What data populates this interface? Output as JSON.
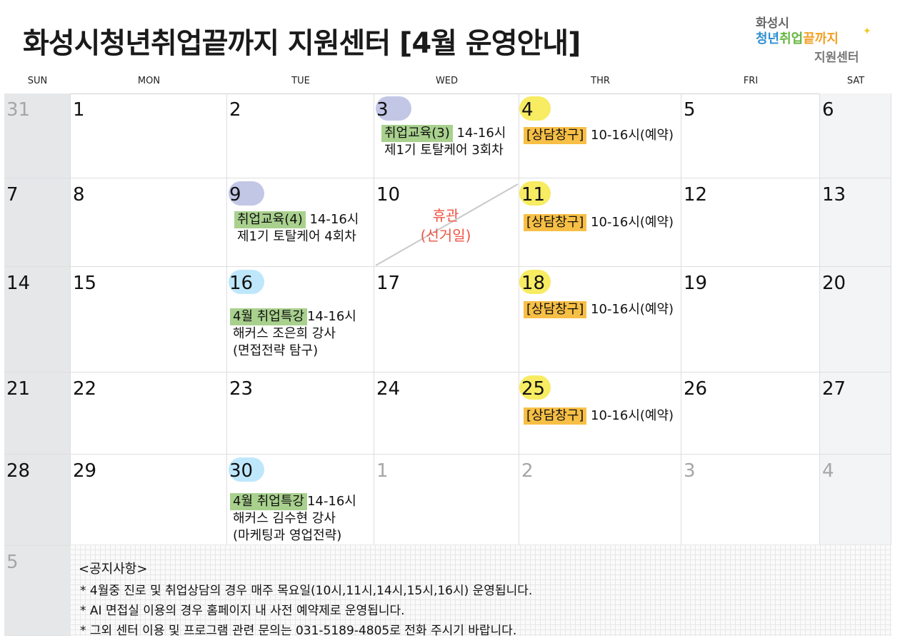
{
  "header": {
    "title": "화성시청년취업끝까지 지원센터 [4월 운영안내]",
    "logo": {
      "line1": "화성시",
      "line2": [
        "청년",
        "취업",
        "끝까지"
      ],
      "line3": "지원센터"
    }
  },
  "weekdays": [
    "SUN",
    "MON",
    "TUE",
    "WED",
    "THR",
    "FRI",
    "SAT"
  ],
  "days": {
    "r0": [
      "31",
      "1",
      "2",
      "3",
      "4",
      "5",
      "6"
    ],
    "r1": [
      "7",
      "8",
      "9",
      "10",
      "11",
      "12",
      "13"
    ],
    "r2": [
      "14",
      "15",
      "16",
      "17",
      "18",
      "19",
      "20"
    ],
    "r3": [
      "21",
      "22",
      "23",
      "24",
      "25",
      "26",
      "27"
    ],
    "r4": [
      "28",
      "29",
      "30",
      "1",
      "2",
      "3",
      "4"
    ],
    "r5": [
      "5"
    ]
  },
  "events": {
    "edu3": {
      "tag": "취업교육(3)",
      "time": "14-16시",
      "line2": "제1기 토탈케어 3회차"
    },
    "edu4": {
      "tag": "취업교육(4)",
      "time": "14-16시",
      "line2": "제1기 토탈케어 4회차"
    },
    "consult": {
      "tag": "[상담창구]",
      "time": "10-16시(예약)"
    },
    "special16": {
      "tag": "4월 취업특강",
      "time": "14-16시",
      "line2": "해커스 조은희 강사",
      "line3": "(면접전략 탐구)"
    },
    "special30": {
      "tag": "4월 취업특강",
      "time": "14-16시",
      "line2": "해커스 김수현 강사",
      "line3": "(마케팅과 영업전략)"
    },
    "closed": {
      "line1": "휴관",
      "line2": "(선거일)"
    }
  },
  "notice": {
    "title": "<공지사항>",
    "lines": [
      "* 4월중 진로 및 취업상담의 경우 매주 목요일(10시,11시,14시,15시,16시) 운영됩니다.",
      "* AI 면접실 이용의 경우 홈페이지 내 사전 예약제로 운영됩니다.",
      "* 그외 센터 이용 및 프로그램 관련 문의는 031-5189-4805로 전화 주시기 바랍니다."
    ]
  },
  "colors": {
    "tag_green": "#a9d18e",
    "tag_orange": "#f7bf45",
    "bubble_blue": "#c3c7e6",
    "bubble_yellow": "#f7ec62",
    "bubble_cyan": "#bfe7fb",
    "closed_text": "#ee5544"
  }
}
